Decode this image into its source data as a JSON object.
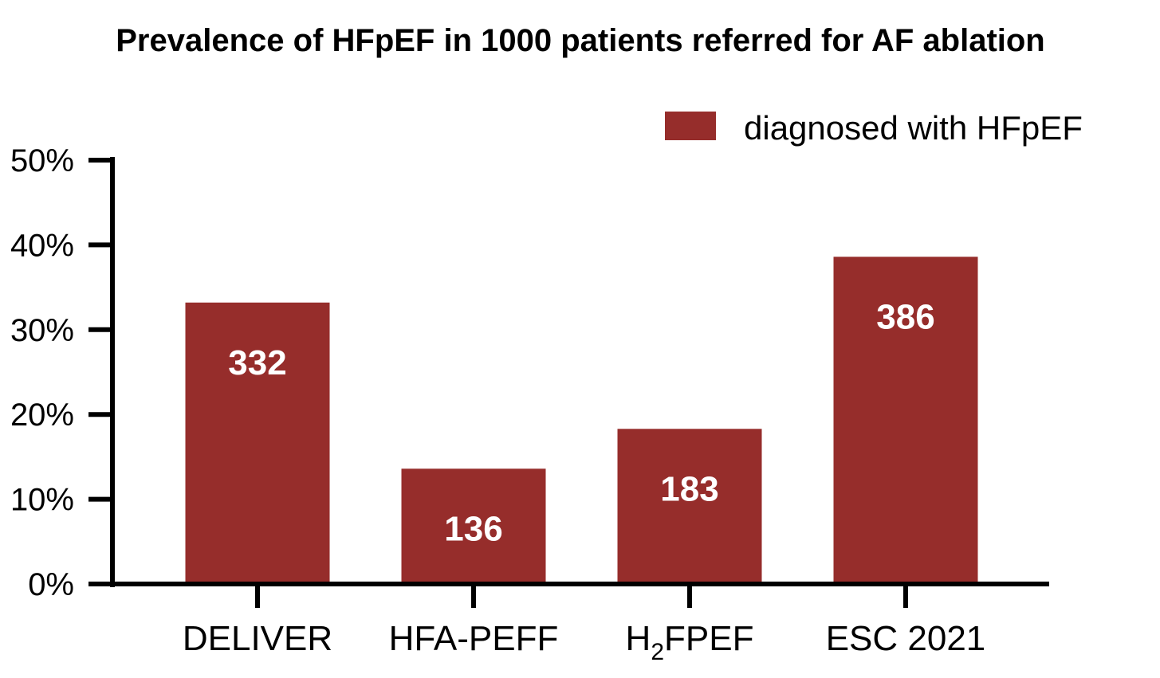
{
  "chart_data": {
    "type": "bar",
    "title": "Prevalence of HFpEF in 1000 patients referred for AF ablation",
    "xlabel": "",
    "ylabel": "",
    "ylim": [
      0,
      50
    ],
    "y_ticks": [
      {
        "value": 0,
        "label": "0%"
      },
      {
        "value": 10,
        "label": "10%"
      },
      {
        "value": 20,
        "label": "20%"
      },
      {
        "value": 30,
        "label": "30%"
      },
      {
        "value": 40,
        "label": "40%"
      },
      {
        "value": 50,
        "label": "50%"
      }
    ],
    "categories": [
      {
        "main": "DELIVER",
        "sub": "",
        "tail": ""
      },
      {
        "main": "HFA-PEFF",
        "sub": "",
        "tail": ""
      },
      {
        "main": "H",
        "sub": "2",
        "tail": "FPEF"
      },
      {
        "main": "ESC 2021",
        "sub": "",
        "tail": ""
      }
    ],
    "series": [
      {
        "name": "diagnosed with HFpEF",
        "color": "#962d2b",
        "values": [
          33.2,
          13.6,
          18.3,
          38.6
        ],
        "data_labels": [
          "332",
          "136",
          "183",
          "386"
        ]
      }
    ],
    "legend_position": "top-right",
    "grid": false
  }
}
